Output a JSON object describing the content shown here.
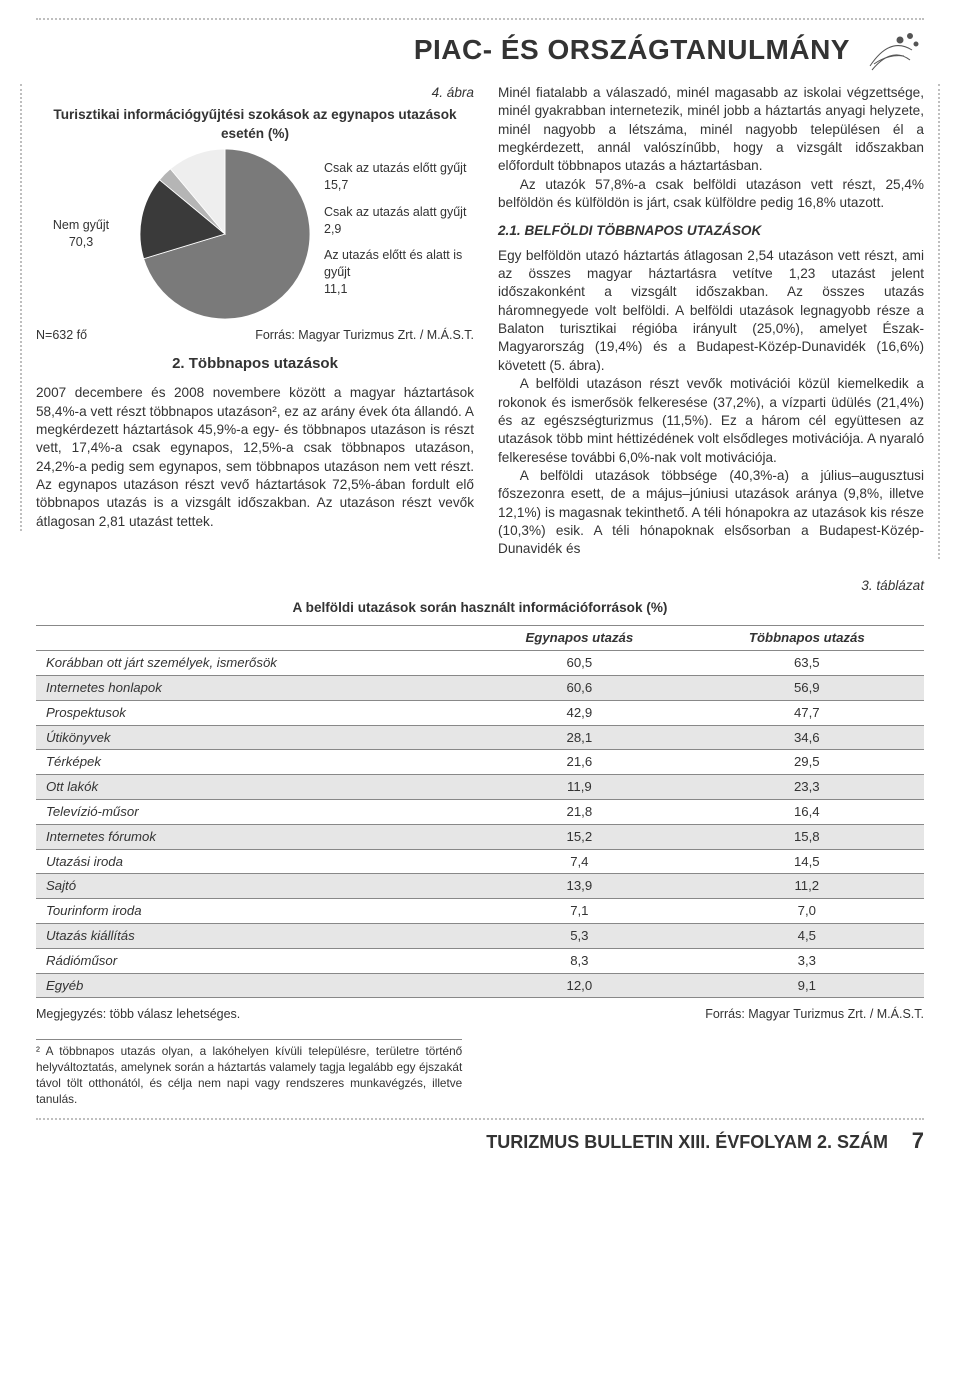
{
  "masthead": {
    "title": "PIAC- ÉS ORSZÁGTANULMÁNY"
  },
  "figure4": {
    "caption_no": "4. ábra",
    "title": "Turisztikai információgyűjtési szokások az egynapos utazások esetén (%)",
    "n_label": "N=632 fő",
    "source": "Forrás: Magyar Turizmus Zrt. / M.Á.S.T.",
    "chart": {
      "type": "pie",
      "background_color": "#ffffff",
      "stroke_color": "#ffffff",
      "stroke_width": 1,
      "label_fontsize": 12.5,
      "slices": [
        {
          "label": "Nem gyűjt",
          "value": 70.3,
          "color": "#7a7a7a"
        },
        {
          "label": "Csak az utazás előtt gyűjt",
          "value": 15.7,
          "color": "#3a3a3a"
        },
        {
          "label": "Csak az utazás alatt gyűjt",
          "value": 2.9,
          "color": "#b5b5b5"
        },
        {
          "label": "Az utazás előtt és alatt is gyűjt",
          "value": 11.1,
          "color": "#eeeeee"
        }
      ],
      "left_label": {
        "name": "Nem gyűjt",
        "value": "70,3"
      },
      "right_labels": [
        {
          "name": "Csak az utazás előtt gyűjt",
          "value": "15,7"
        },
        {
          "name": "Csak az utazás alatt gyűjt",
          "value": "2,9"
        },
        {
          "name": "Az utazás előtt és alatt is gyűjt",
          "value": "11,1"
        }
      ]
    }
  },
  "section2": {
    "heading": "2. Többnapos utazások",
    "para1": "2007 decembere és 2008 novembere között a magyar háztartások 58,4%-a vett részt többnapos utazáson², ez az arány évek óta állandó. A megkérdezett háztartások 45,9%-a egy- és többnapos utazáson is részt vett, 17,4%-a csak egynapos, 12,5%-a csak többnapos utazáson, 24,2%-a pedig sem egynapos, sem többnapos utazáson nem vett részt. Az egynapos utazáson részt vevő háztartások 72,5%-ában fordult elő többnapos utazás is a vizsgált időszakban. Az utazáson részt vevők átlagosan 2,81 utazást tettek."
  },
  "right_col": {
    "para1": "Minél fiatalabb a válaszadó, minél magasabb az iskolai végzettsége, minél gyakrabban internetezik, minél jobb a háztartás anyagi helyzete, minél nagyobb a létszáma, minél nagyobb településen él a megkérdezett, annál valószínűbb, hogy a vizsgált időszakban előfordult többnapos utazás a háztartásban.",
    "para2": "Az utazók 57,8%-a csak belföldi utazáson vett részt, 25,4% belföldön és külföldön is járt, csak külföldre pedig 16,8% utazott.",
    "subhead": "2.1. BELFÖLDI TÖBBNAPOS UTAZÁSOK",
    "para3": "Egy belföldön utazó háztartás átlagosan 2,54 utazáson vett részt, ami az összes magyar háztartásra vetítve 1,23 utazást jelent időszakonként a vizsgált időszakban. Az összes utazás háromnegyede volt belföldi. A belföldi utazások legnagyobb része a Balaton turisztikai régióba irányult (25,0%), amelyet Észak-Magyarország (19,4%) és a Budapest-Közép-Dunavidék (16,6%) követett (5. ábra).",
    "para4": "A belföldi utazáson részt vevők motivációi közül kiemelkedik a rokonok és ismerősök felkeresése (37,2%), a vízparti üdülés (21,4%) és az egészségturizmus (11,5%). Ez a három cél együttesen az utazások több mint héttizédének volt elsődleges motivációja. A nyaraló felkeresése további 6,0%-nak volt motivációja.",
    "para5": "A belföldi utazások többsége (40,3%-a) a július–augusztusi főszezonra esett, de a május–júniusi utazások aránya (9,8%, illetve 12,1%) is magasnak tekinthető. A téli hónapokra az utazások kis része (10,3%) esik. A téli hónapoknak elsősorban a Budapest-Közép-Dunavidék és"
  },
  "table3": {
    "caption_no": "3. táblázat",
    "title": "A belföldi utazások során használt információforrások (%)",
    "columns": [
      "",
      "Egynapos utazás",
      "Többnapos utazás"
    ],
    "note_left": "Megjegyzés: több válasz lehetséges.",
    "source": "Forrás: Magyar Turizmus Zrt. / M.Á.S.T.",
    "header_fontsize": 13.2,
    "row_fontsize": 13.2,
    "stripe_color": "#e6e6e6",
    "border_color": "#888888",
    "rows": [
      {
        "label": "Korábban ott járt személyek, ismerősök",
        "a": "60,5",
        "b": "63,5"
      },
      {
        "label": "Internetes honlapok",
        "a": "60,6",
        "b": "56,9"
      },
      {
        "label": "Prospektusok",
        "a": "42,9",
        "b": "47,7"
      },
      {
        "label": "Útikönyvek",
        "a": "28,1",
        "b": "34,6"
      },
      {
        "label": "Térképek",
        "a": "21,6",
        "b": "29,5"
      },
      {
        "label": "Ott lakók",
        "a": "11,9",
        "b": "23,3"
      },
      {
        "label": "Televízió-műsor",
        "a": "21,8",
        "b": "16,4"
      },
      {
        "label": "Internetes fórumok",
        "a": "15,2",
        "b": "15,8"
      },
      {
        "label": "Utazási iroda",
        "a": "7,4",
        "b": "14,5"
      },
      {
        "label": "Sajtó",
        "a": "13,9",
        "b": "11,2"
      },
      {
        "label": "Tourinform iroda",
        "a": "7,1",
        "b": "7,0"
      },
      {
        "label": "Utazás kiállítás",
        "a": "5,3",
        "b": "4,5"
      },
      {
        "label": "Rádióműsor",
        "a": "8,3",
        "b": "3,3"
      },
      {
        "label": "Egyéb",
        "a": "12,0",
        "b": "9,1"
      }
    ]
  },
  "footnote2": "² A többnapos utazás olyan, a lakóhelyen kívüli településre, területre történő helyváltoztatás, amelynek során a háztartás valamely tagja legalább egy éjszakát távol tölt otthonától, és célja nem napi vagy rendszeres munkavégzés, illetve tanulás.",
  "footer": {
    "title": "TURIZMUS BULLETIN XIII. ÉVFOLYAM 2. SZÁM",
    "page": "7"
  }
}
